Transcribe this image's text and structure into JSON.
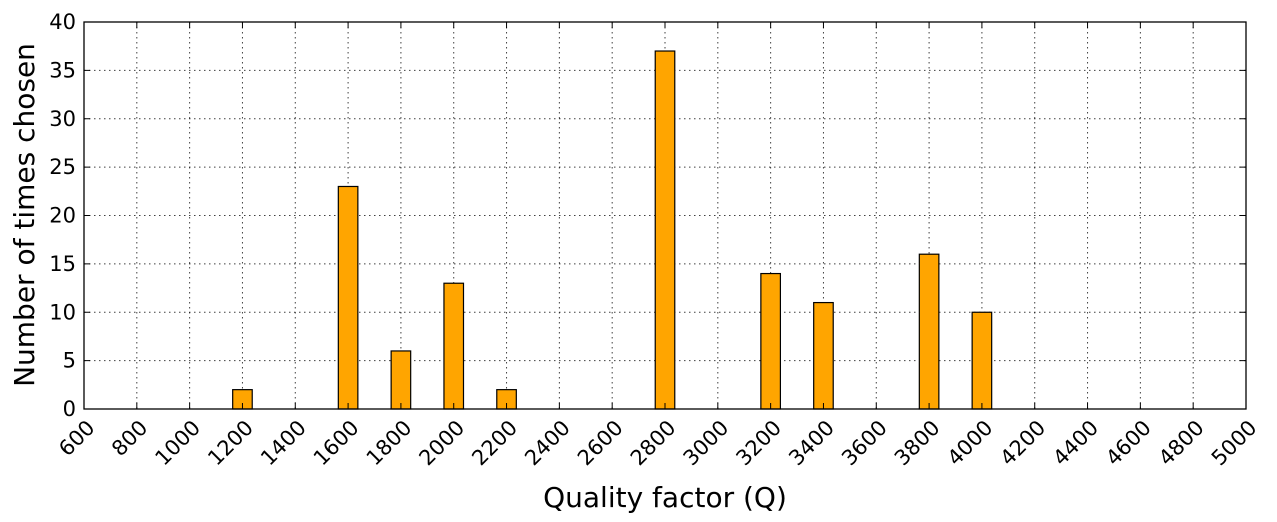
{
  "chart_data": {
    "type": "bar",
    "title": "",
    "xlabel": "Quality factor (Q)",
    "ylabel": "Number of times chosen",
    "categories": [
      "600",
      "800",
      "1000",
      "1200",
      "1400",
      "1600",
      "1800",
      "2000",
      "2200",
      "2400",
      "2600",
      "2800",
      "3000",
      "3200",
      "3400",
      "3600",
      "3800",
      "4000",
      "4200",
      "4400",
      "4600",
      "4800",
      "5000"
    ],
    "values": [
      0,
      0,
      0,
      2,
      0,
      23,
      6,
      13,
      2,
      0,
      0,
      37,
      0,
      14,
      11,
      0,
      16,
      10,
      0,
      0,
      0,
      0,
      0
    ],
    "yticks": [
      "0",
      "5",
      "10",
      "15",
      "20",
      "25",
      "30",
      "35",
      "40"
    ],
    "ylim": [
      0,
      40
    ],
    "grid": true,
    "bar_color": "#ffa500"
  }
}
